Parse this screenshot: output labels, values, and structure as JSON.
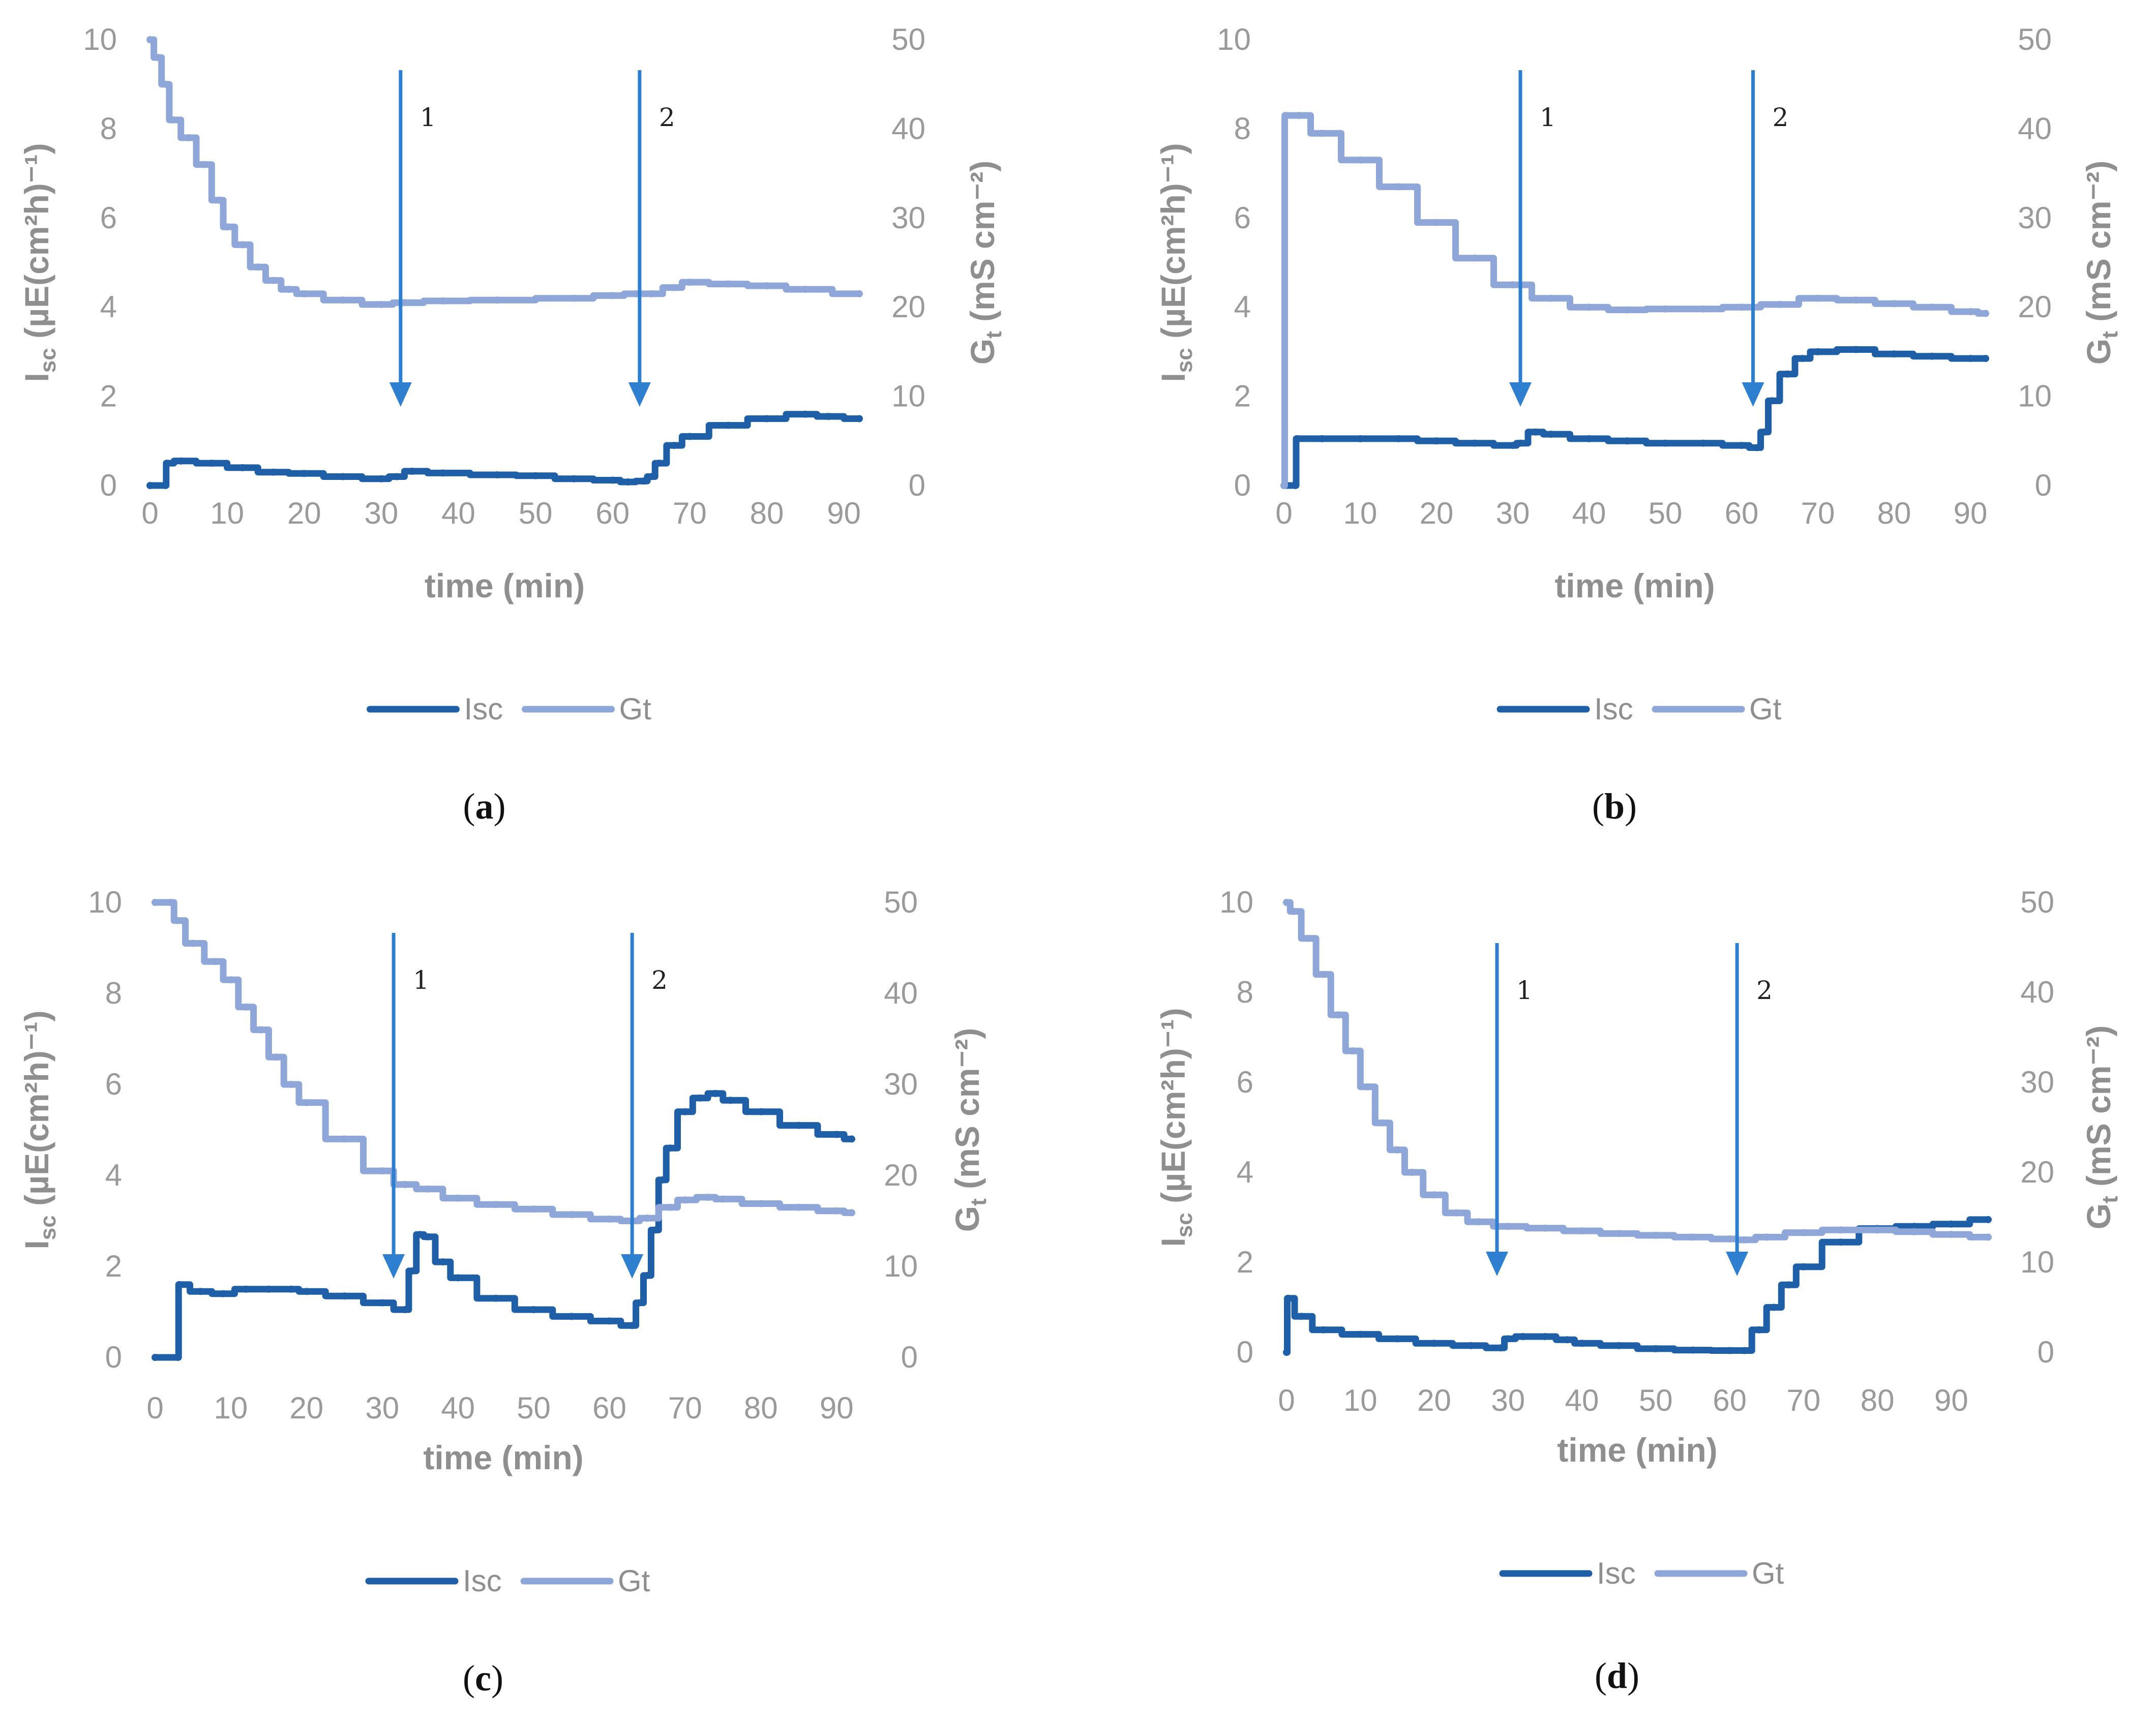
{
  "colors": {
    "isc": "#1f5fa8",
    "gt": "#8ea6d8",
    "arrow": "#2f7fd0",
    "tick": "#9a9a9a"
  },
  "chart_data": [
    {
      "panel": "a",
      "type": "line",
      "panel_label": "a",
      "xlabel": "time (min)",
      "ylabel_left": {
        "main": "I",
        "sub": "sc",
        "rest": " (µE(cm²h)⁻¹)"
      },
      "ylabel_right": {
        "main": "G",
        "sub": "t",
        "rest": " (mS cm⁻²)"
      },
      "x_ticks": [
        "0",
        "10",
        "20",
        "30",
        "40",
        "50",
        "60",
        "70",
        "80",
        "90"
      ],
      "y_left_ticks": [
        "0",
        "2",
        "4",
        "6",
        "8",
        "10"
      ],
      "y_right_ticks": [
        "0",
        "10",
        "20",
        "30",
        "40",
        "50"
      ],
      "xlim": [
        0,
        92
      ],
      "ylim_left": [
        0,
        10
      ],
      "ylim_right": [
        0,
        50
      ],
      "legend": [
        "Isc",
        "Gt"
      ],
      "arrows": [
        {
          "label": "1",
          "x": 32.5
        },
        {
          "label": "2",
          "x": 63.5
        }
      ],
      "series": [
        {
          "name": "Isc",
          "axis": "left",
          "x": [
            0,
            2,
            2.2,
            4,
            8,
            12,
            16,
            20,
            25,
            30,
            32,
            34,
            38,
            45,
            50,
            55,
            60,
            62,
            64,
            65,
            66,
            68,
            70,
            75,
            80,
            85,
            88,
            92
          ],
          "values": [
            0,
            0,
            0.5,
            0.55,
            0.5,
            0.4,
            0.3,
            0.27,
            0.2,
            0.15,
            0.2,
            0.32,
            0.28,
            0.24,
            0.22,
            0.15,
            0.12,
            0.08,
            0.1,
            0.2,
            0.5,
            0.9,
            1.1,
            1.35,
            1.5,
            1.6,
            1.55,
            1.5
          ]
        },
        {
          "name": "Gt",
          "axis": "right",
          "x": [
            0,
            1,
            2,
            3,
            5,
            7,
            9,
            10,
            12,
            14,
            16,
            18,
            20,
            25,
            30,
            33,
            38,
            45,
            55,
            60,
            63,
            65,
            68,
            70,
            75,
            80,
            85,
            92
          ],
          "values": [
            50,
            48,
            45,
            41,
            39,
            36,
            32,
            29,
            27,
            24.5,
            23,
            22,
            21.5,
            20.8,
            20.3,
            20.5,
            20.7,
            20.8,
            21,
            21.3,
            21.5,
            21.5,
            22.2,
            22.8,
            22.6,
            22.4,
            22,
            21.5
          ]
        }
      ]
    },
    {
      "panel": "b",
      "type": "line",
      "panel_label": "b",
      "xlabel": "time (min)",
      "ylabel_left": {
        "main": "I",
        "sub": "sc",
        "rest": " (µE(cm²h)⁻¹)"
      },
      "ylabel_right": {
        "main": "G",
        "sub": "t",
        "rest": " (mS cm⁻²)"
      },
      "x_ticks": [
        "0",
        "10",
        "20",
        "30",
        "40",
        "50",
        "60",
        "70",
        "80",
        "90"
      ],
      "y_left_ticks": [
        "0",
        "2",
        "4",
        "6",
        "8",
        "10"
      ],
      "y_right_ticks": [
        "0",
        "10",
        "20",
        "30",
        "40",
        "50"
      ],
      "xlim": [
        0,
        92
      ],
      "ylim_left": [
        0,
        10
      ],
      "ylim_right": [
        0,
        50
      ],
      "legend": [
        "Isc",
        "Gt"
      ],
      "arrows": [
        {
          "label": "1",
          "x": 31
        },
        {
          "label": "2",
          "x": 61.5
        }
      ],
      "series": [
        {
          "name": "Isc",
          "axis": "left",
          "x": [
            0,
            1.5,
            1.7,
            5,
            10,
            15,
            20,
            25,
            30,
            31,
            33,
            35,
            40,
            45,
            50,
            55,
            60,
            62,
            63,
            64,
            66,
            68,
            70,
            75,
            80,
            85,
            90,
            92
          ],
          "values": [
            0,
            0,
            1.05,
            1.05,
            1.05,
            1.05,
            1.0,
            0.95,
            0.9,
            0.95,
            1.2,
            1.15,
            1.05,
            1.0,
            0.95,
            0.95,
            0.9,
            0.85,
            1.2,
            1.9,
            2.5,
            2.85,
            3.0,
            3.05,
            2.95,
            2.9,
            2.85,
            2.85
          ]
        },
        {
          "name": "Gt",
          "axis": "right",
          "x": [
            0,
            0.2,
            2,
            5,
            10,
            15,
            20,
            25,
            30,
            35,
            40,
            45,
            50,
            55,
            60,
            65,
            70,
            75,
            80,
            85,
            90,
            92
          ],
          "values": [
            0,
            41.5,
            41.5,
            39.5,
            36.5,
            33.5,
            29.5,
            25.5,
            22.5,
            21,
            20,
            19.7,
            19.8,
            19.8,
            20.0,
            20.3,
            21,
            20.8,
            20.4,
            20,
            19.5,
            19.3
          ]
        }
      ]
    },
    {
      "panel": "c",
      "type": "line",
      "panel_label": "c",
      "xlabel": "time (min)",
      "ylabel_left": {
        "main": "I",
        "sub": "sc",
        "rest": " (µE(cm²h)⁻¹)"
      },
      "ylabel_right": {
        "main": "G",
        "sub": "t",
        "rest": " (mS cm⁻²)"
      },
      "x_ticks": [
        "0",
        "10",
        "20",
        "30",
        "40",
        "50",
        "60",
        "70",
        "80",
        "90"
      ],
      "y_left_ticks": [
        "0",
        "2",
        "4",
        "6",
        "8",
        "10"
      ],
      "y_right_ticks": [
        "0",
        "10",
        "20",
        "30",
        "40",
        "50"
      ],
      "xlim": [
        0,
        92
      ],
      "ylim_left": [
        0,
        10
      ],
      "ylim_right": [
        0,
        50
      ],
      "legend": [
        "Isc",
        "Gt"
      ],
      "arrows": [
        {
          "label": "1",
          "x": 31.5
        },
        {
          "label": "2",
          "x": 63
        }
      ],
      "series": [
        {
          "name": "Isc",
          "axis": "left",
          "x": [
            0,
            3,
            3.2,
            6,
            9,
            12,
            15,
            18,
            20,
            25,
            30,
            33,
            34,
            35,
            36,
            38,
            40,
            45,
            50,
            55,
            60,
            63,
            64,
            65,
            66,
            67,
            68,
            70,
            72,
            74,
            76,
            80,
            85,
            90,
            92
          ],
          "values": [
            0,
            0,
            1.6,
            1.45,
            1.4,
            1.5,
            1.5,
            1.5,
            1.45,
            1.35,
            1.2,
            1.05,
            1.9,
            2.7,
            2.65,
            2.1,
            1.75,
            1.3,
            1.05,
            0.9,
            0.8,
            0.7,
            1.2,
            1.8,
            2.8,
            3.9,
            4.6,
            5.4,
            5.7,
            5.8,
            5.65,
            5.4,
            5.1,
            4.9,
            4.8
          ]
        },
        {
          "name": "Gt",
          "axis": "right",
          "x": [
            0,
            2,
            3,
            5,
            8,
            10,
            12,
            14,
            16,
            18,
            20,
            25,
            30,
            33,
            36,
            40,
            45,
            50,
            55,
            60,
            63,
            65,
            68,
            70,
            73,
            75,
            80,
            85,
            90,
            92
          ],
          "values": [
            50,
            50,
            48,
            45.5,
            43.5,
            41.5,
            38.5,
            36,
            33,
            30,
            28,
            24,
            20.5,
            19,
            18.5,
            17.5,
            16.8,
            16.3,
            15.7,
            15.2,
            15.0,
            15.3,
            16.5,
            17.3,
            17.6,
            17.4,
            16.9,
            16.5,
            16.1,
            15.9
          ]
        }
      ]
    },
    {
      "panel": "d",
      "type": "line",
      "panel_label": "d",
      "xlabel": "time (min)",
      "ylabel_left": {
        "main": "I",
        "sub": "sc",
        "rest": " (µE(cm²h)⁻¹)"
      },
      "ylabel_right": {
        "main": "G",
        "sub": "t",
        "rest": " (mS cm⁻²)"
      },
      "x_ticks": [
        "0",
        "10",
        "20",
        "30",
        "40",
        "50",
        "60",
        "70",
        "80",
        "90"
      ],
      "y_left_ticks": [
        "0",
        "2",
        "4",
        "6",
        "8",
        "10"
      ],
      "y_right_ticks": [
        "0",
        "10",
        "20",
        "30",
        "40",
        "50"
      ],
      "xlim": [
        0,
        95
      ],
      "ylim_left": [
        0,
        10
      ],
      "ylim_right": [
        0,
        50
      ],
      "legend": [
        "Isc",
        "Gt"
      ],
      "arrows": [
        {
          "label": "1",
          "x": 28.5
        },
        {
          "label": "2",
          "x": 61
        }
      ],
      "series": [
        {
          "name": "Isc",
          "axis": "left",
          "x": [
            0,
            0.2,
            2,
            5,
            10,
            15,
            20,
            25,
            29,
            30,
            32,
            35,
            38,
            40,
            45,
            50,
            55,
            60,
            62,
            64,
            66,
            68,
            70,
            75,
            80,
            85,
            90,
            95
          ],
          "values": [
            0,
            1.2,
            0.8,
            0.5,
            0.4,
            0.3,
            0.2,
            0.15,
            0.1,
            0.3,
            0.35,
            0.35,
            0.28,
            0.2,
            0.15,
            0.08,
            0.05,
            0.04,
            0.04,
            0.5,
            1.0,
            1.5,
            1.9,
            2.45,
            2.75,
            2.8,
            2.85,
            2.95
          ]
        },
        {
          "name": "Gt",
          "axis": "right",
          "x": [
            0,
            1,
            3,
            5,
            7,
            9,
            11,
            13,
            15,
            17,
            20,
            23,
            26,
            30,
            35,
            40,
            45,
            50,
            55,
            60,
            62,
            65,
            70,
            75,
            80,
            85,
            90,
            95
          ],
          "values": [
            50,
            49,
            46,
            42,
            37.5,
            33.5,
            29.5,
            25.5,
            22.5,
            20,
            17.5,
            15.5,
            14.5,
            14,
            13.8,
            13.5,
            13.2,
            13.0,
            12.8,
            12.6,
            12.5,
            12.8,
            13.3,
            13.6,
            13.6,
            13.4,
            13.1,
            12.8
          ]
        }
      ]
    }
  ]
}
